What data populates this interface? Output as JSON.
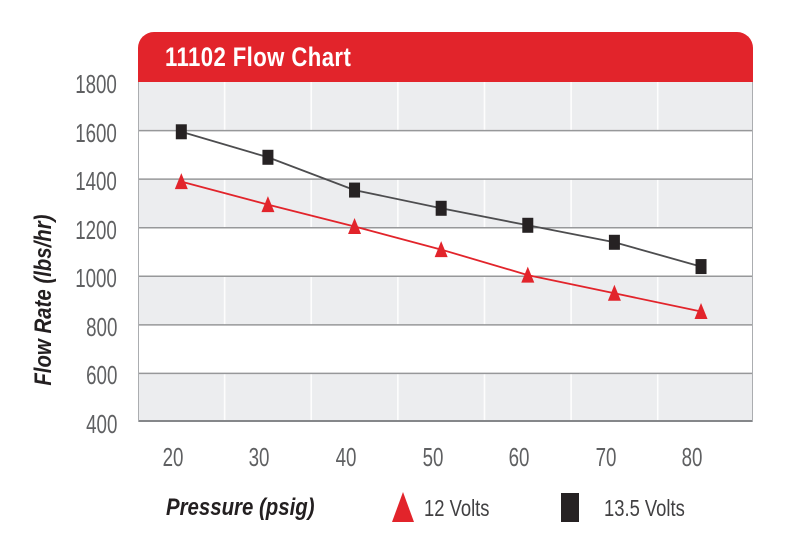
{
  "banner": {
    "title": "11102 Flow Chart"
  },
  "chart_data": {
    "type": "line",
    "title": "11102 Flow Chart",
    "xlabel": "Pressure (psig)",
    "ylabel": "Flow Rate (lbs/hr)",
    "xlim": [
      16,
      87
    ],
    "ylim": [
      400,
      1800
    ],
    "xticks": [
      20,
      30,
      40,
      50,
      60,
      70,
      80
    ],
    "yticks": [
      1800,
      1600,
      1400,
      1200,
      1000,
      800,
      600,
      400
    ],
    "x_minor_gridlines": [
      26,
      36,
      46,
      56,
      66,
      76
    ],
    "grid": "horizontal-major-lines with alternating gray/white bands",
    "legend_position": "bottom",
    "x": [
      21,
      31,
      41,
      51,
      61,
      71,
      81
    ],
    "series": [
      {
        "name": "12 Volts",
        "marker": "triangle",
        "color": "#E2242B",
        "line_color": "#E2242B",
        "values": [
          1390,
          1295,
          1205,
          1110,
          1005,
          930,
          855
        ]
      },
      {
        "name": "13.5 Volts",
        "marker": "square",
        "color": "#262223",
        "line_color": "#4D4D4F",
        "values": [
          1595,
          1490,
          1355,
          1280,
          1210,
          1140,
          1040
        ]
      }
    ]
  },
  "colors": {
    "banner_red": "#E2242B",
    "title_text": "#FFFFFF",
    "band_gray": "#ECEDEF",
    "band_white": "#FFFFFF",
    "gridline": "#97989A",
    "axis_line": "#85878A",
    "plot_border": "#ABADB0",
    "tick_text": "#5F6062",
    "axis_title_text": "#231F20",
    "legend_text": "#414042",
    "series_red": "#E2242B",
    "series_black": "#262223"
  }
}
